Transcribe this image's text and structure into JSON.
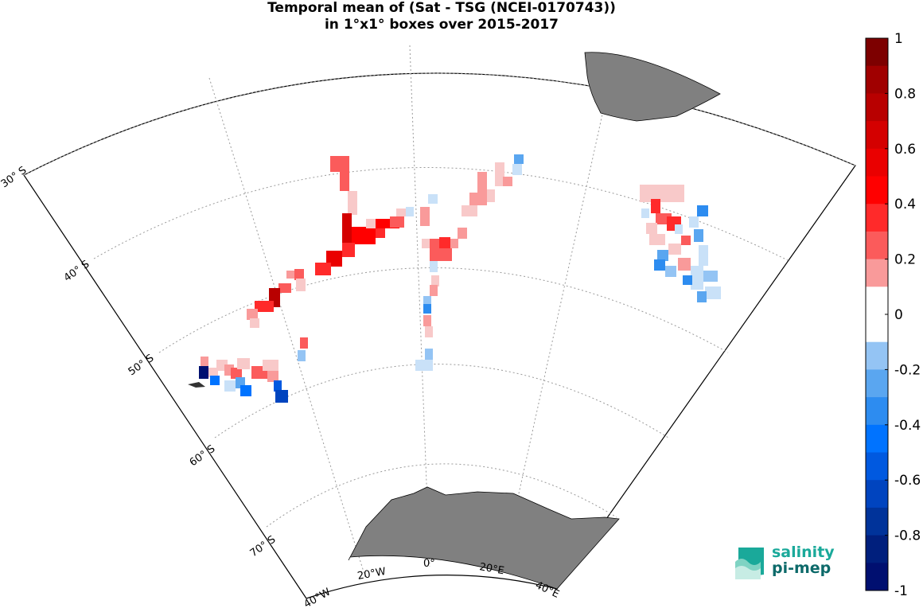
{
  "title": {
    "line1": "Temporal mean of (Sat - TSG (NCEI-0170743))",
    "line2": "in 1°x1° boxes over 2015-2017"
  },
  "map": {
    "lat_labels": [
      "30° S",
      "40° S",
      "50° S",
      "60° S",
      "70° S"
    ],
    "lon_labels": [
      "40°W",
      "20°W",
      "0°",
      "20°E",
      "40°E"
    ],
    "land_color": "#808080",
    "grid_style": "dotted"
  },
  "colorbar": {
    "range": [
      -1,
      1
    ],
    "tick_labels": [
      "1",
      "0.8",
      "0.6",
      "0.4",
      "0.2",
      "0",
      "-0.2",
      "-0.4",
      "-0.6",
      "-0.8",
      "-1"
    ],
    "colors": [
      "#ffffff",
      "#f8c9c9",
      "#f99a9a",
      "#fb5b5b",
      "#ff2a2a",
      "#ff0000",
      "#ea0000",
      "#d40000",
      "#b80000",
      "#a00000",
      "#7d0000"
    ],
    "neg_colors": [
      "#c9e1f8",
      "#94c4f4",
      "#5aa6f0",
      "#2d8cf0",
      "#0073ff",
      "#0059e0",
      "#0044bf",
      "#00339a",
      "#001f7d",
      "#000f70"
    ]
  },
  "logo": {
    "line1": "salinity",
    "line2": "pi-mep"
  }
}
